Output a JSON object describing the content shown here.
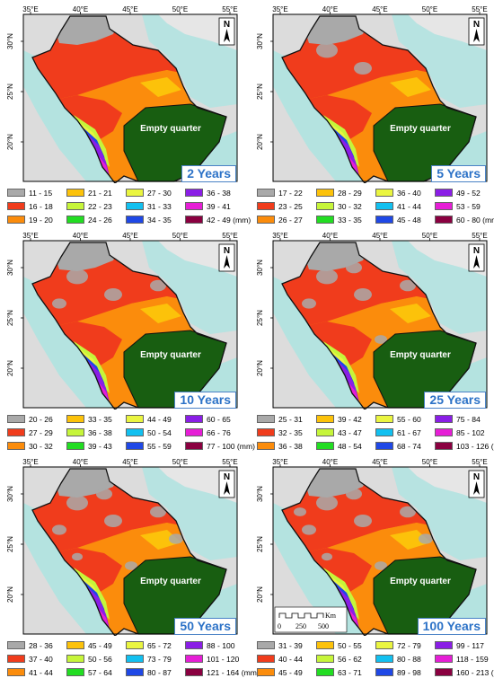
{
  "axes": {
    "x_ticks": [
      "35°E",
      "40°E",
      "45°E",
      "50°E",
      "55°E"
    ],
    "y_ticks": [
      "30°N",
      "25°N",
      "20°N"
    ]
  },
  "map": {
    "north_label": "N",
    "region_label": "Empty quarter",
    "scale": {
      "unit": "Km",
      "labels": [
        "0",
        "250",
        "500"
      ]
    }
  },
  "colors": {
    "sea": "#b4e3e0",
    "land_bg": "#dcdcdc",
    "empty_quarter": "#185e11",
    "country_outline": "#111111",
    "period_text": "#2c72c7"
  },
  "panels": [
    {
      "period": "2 Years",
      "legend": [
        {
          "label": "11 - 15",
          "color": "#a9a9a9"
        },
        {
          "label": "16 - 18",
          "color": "#f03c1c"
        },
        {
          "label": "19 - 20",
          "color": "#fb8c0c"
        },
        {
          "label": "21 - 21",
          "color": "#fcc20a"
        },
        {
          "label": "22 - 23",
          "color": "#c6f53a"
        },
        {
          "label": "24 - 26",
          "color": "#22dd22"
        },
        {
          "label": "27 - 30",
          "color": "#eaf540"
        },
        {
          "label": "31 - 33",
          "color": "#12c0f0"
        },
        {
          "label": "34 - 35",
          "color": "#1f48e6"
        },
        {
          "label": "36 - 38",
          "color": "#8a1ee6"
        },
        {
          "label": "39 - 41",
          "color": "#e61ed6"
        },
        {
          "label": "42 - 49 (mm)",
          "color": "#8a0040"
        }
      ]
    },
    {
      "period": "5 Years",
      "legend": [
        {
          "label": "17 - 22",
          "color": "#a9a9a9"
        },
        {
          "label": "23 - 25",
          "color": "#f03c1c"
        },
        {
          "label": "26 - 27",
          "color": "#fb8c0c"
        },
        {
          "label": "28 - 29",
          "color": "#fcc20a"
        },
        {
          "label": "30 - 32",
          "color": "#c6f53a"
        },
        {
          "label": "33 - 35",
          "color": "#22dd22"
        },
        {
          "label": "36 - 40",
          "color": "#eaf540"
        },
        {
          "label": "41 - 44",
          "color": "#12c0f0"
        },
        {
          "label": "45 - 48",
          "color": "#1f48e6"
        },
        {
          "label": "49 - 52",
          "color": "#8a1ee6"
        },
        {
          "label": "53 - 59",
          "color": "#e61ed6"
        },
        {
          "label": "60 - 80 (mm)",
          "color": "#8a0040"
        }
      ]
    },
    {
      "period": "10 Years",
      "legend": [
        {
          "label": "20 - 26",
          "color": "#a9a9a9"
        },
        {
          "label": "27 - 29",
          "color": "#f03c1c"
        },
        {
          "label": "30 - 32",
          "color": "#fb8c0c"
        },
        {
          "label": "33 - 35",
          "color": "#fcc20a"
        },
        {
          "label": "36 - 38",
          "color": "#c6f53a"
        },
        {
          "label": "39 - 43",
          "color": "#22dd22"
        },
        {
          "label": "44 - 49",
          "color": "#eaf540"
        },
        {
          "label": "50 - 54",
          "color": "#12c0f0"
        },
        {
          "label": "55 - 59",
          "color": "#1f48e6"
        },
        {
          "label": "60 - 65",
          "color": "#8a1ee6"
        },
        {
          "label": "66 - 76",
          "color": "#e61ed6"
        },
        {
          "label": "77 - 100 (mm)",
          "color": "#8a0040"
        }
      ]
    },
    {
      "period": "25 Years",
      "legend": [
        {
          "label": "25 - 31",
          "color": "#a9a9a9"
        },
        {
          "label": "32 - 35",
          "color": "#f03c1c"
        },
        {
          "label": "36 - 38",
          "color": "#fb8c0c"
        },
        {
          "label": "39 - 42",
          "color": "#fcc20a"
        },
        {
          "label": "43 - 47",
          "color": "#c6f53a"
        },
        {
          "label": "48 - 54",
          "color": "#22dd22"
        },
        {
          "label": "55 - 60",
          "color": "#eaf540"
        },
        {
          "label": "61 - 67",
          "color": "#12c0f0"
        },
        {
          "label": "68 - 74",
          "color": "#1f48e6"
        },
        {
          "label": "75 - 84",
          "color": "#8a1ee6"
        },
        {
          "label": "85 - 102",
          "color": "#e61ed6"
        },
        {
          "label": "103 - 126 (mm)",
          "color": "#8a0040"
        }
      ]
    },
    {
      "period": "50 Years",
      "legend": [
        {
          "label": "28 - 36",
          "color": "#a9a9a9"
        },
        {
          "label": "37 - 40",
          "color": "#f03c1c"
        },
        {
          "label": "41 - 44",
          "color": "#fb8c0c"
        },
        {
          "label": "45 - 49",
          "color": "#fcc20a"
        },
        {
          "label": "50 - 56",
          "color": "#c6f53a"
        },
        {
          "label": "57 - 64",
          "color": "#22dd22"
        },
        {
          "label": "65 - 72",
          "color": "#eaf540"
        },
        {
          "label": "73 - 79",
          "color": "#12c0f0"
        },
        {
          "label": "80 - 87",
          "color": "#1f48e6"
        },
        {
          "label": "88 - 100",
          "color": "#8a1ee6"
        },
        {
          "label": "101 - 120",
          "color": "#e61ed6"
        },
        {
          "label": "121 - 164 (mm)",
          "color": "#8a0040"
        }
      ]
    },
    {
      "period": "100 Years",
      "legend": [
        {
          "label": "31 - 39",
          "color": "#a9a9a9"
        },
        {
          "label": "40 - 44",
          "color": "#f03c1c"
        },
        {
          "label": "45 - 49",
          "color": "#fb8c0c"
        },
        {
          "label": "50 - 55",
          "color": "#fcc20a"
        },
        {
          "label": "56 - 62",
          "color": "#c6f53a"
        },
        {
          "label": "63 - 71",
          "color": "#22dd22"
        },
        {
          "label": "72 - 79",
          "color": "#eaf540"
        },
        {
          "label": "80 - 88",
          "color": "#12c0f0"
        },
        {
          "label": "89 - 98",
          "color": "#1f48e6"
        },
        {
          "label": "99 - 117",
          "color": "#8a1ee6"
        },
        {
          "label": "118 - 159",
          "color": "#e61ed6"
        },
        {
          "label": "160 - 213 (mm)",
          "color": "#8a0040"
        }
      ]
    }
  ]
}
